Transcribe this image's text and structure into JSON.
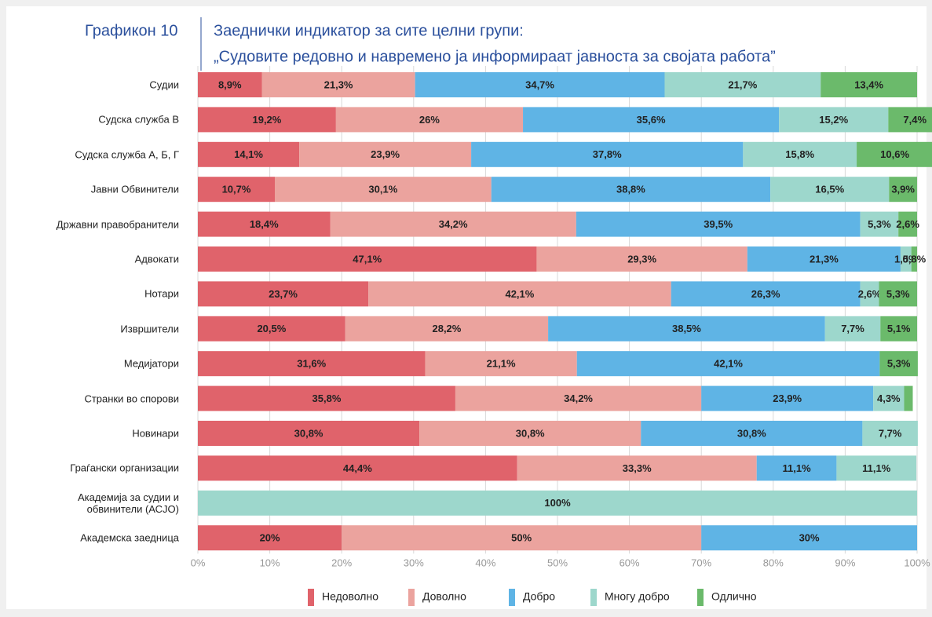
{
  "chart_data": {
    "type": "stacked_bar_horizontal",
    "figure_label": "Графикон 10",
    "title": "Заеднички индикатор за сите целни групи:",
    "subtitle": "„Судовите редовно и навремено ја информираат јавноста за својата работа”",
    "categories": [
      "Судии",
      "Судска служба В",
      "Судска служба А, Б, Г",
      "Јавни Обвинители",
      "Државни правобранители",
      "Адвокати",
      "Нотари",
      "Извршители",
      "Медијатори",
      "Странки во спорови",
      "Новинари",
      "Граѓански организации",
      "Академија за судии и обвинители (АСЈО)",
      "Академска заедница"
    ],
    "series": [
      {
        "name": "Недоволно",
        "color": "#e0636b",
        "values": [
          8.9,
          19.2,
          14.1,
          10.7,
          18.4,
          47.1,
          23.7,
          20.5,
          31.6,
          35.8,
          30.8,
          44.4,
          null,
          20
        ],
        "value_labels": [
          "8,9%",
          "19,2%",
          "14,1%",
          "10,7%",
          "18,4%",
          "47,1%",
          "23,7%",
          "20,5%",
          "31,6%",
          "35,8%",
          "30,8%",
          "44,4%",
          null,
          "20%"
        ]
      },
      {
        "name": "Доволно",
        "color": "#eba39e",
        "values": [
          21.3,
          26,
          23.9,
          30.1,
          34.2,
          29.3,
          42.1,
          28.2,
          21.1,
          34.2,
          30.8,
          33.3,
          null,
          50
        ],
        "value_labels": [
          "21,3%",
          "26%",
          "23,9%",
          "30,1%",
          "34,2%",
          "29,3%",
          "42,1%",
          "28,2%",
          "21,1%",
          "34,2%",
          "30,8%",
          "33,3%",
          null,
          "50%"
        ]
      },
      {
        "name": "Добро",
        "color": "#5fb4e5",
        "values": [
          34.7,
          35.6,
          37.8,
          38.8,
          39.5,
          21.3,
          26.3,
          38.5,
          42.1,
          23.9,
          30.8,
          11.1,
          null,
          30
        ],
        "value_labels": [
          "34,7%",
          "35,6%",
          "37,8%",
          "38,8%",
          "39,5%",
          "21,3%",
          "26,3%",
          "38,5%",
          "42,1%",
          "23,9%",
          "30,8%",
          "11,1%",
          null,
          "30%"
        ]
      },
      {
        "name": "Многу добро",
        "color": "#9dd7cc",
        "values": [
          21.7,
          15.2,
          15.8,
          16.5,
          5.3,
          1.5,
          2.6,
          7.7,
          null,
          4.3,
          7.7,
          11.1,
          100,
          null
        ],
        "value_labels": [
          "21,7%",
          "15,2%",
          "15,8%",
          "16,5%",
          "5,3%",
          "1,5%",
          "2,6%",
          "7,7%",
          null,
          "4,3%",
          "7,7%",
          "11,1%",
          "100%",
          null
        ]
      },
      {
        "name": "Одлично",
        "color": "#6bba6b",
        "values": [
          13.4,
          7.4,
          10.6,
          3.9,
          2.6,
          0.8,
          5.3,
          5.1,
          5.3,
          1.2,
          null,
          null,
          null,
          null
        ],
        "value_labels": [
          "13,4%",
          "7,4%",
          "10,6%",
          "3,9%",
          "2,6%",
          "0,8%",
          "5,3%",
          "5,1%",
          "5,3%",
          null,
          null,
          null,
          null,
          null
        ]
      }
    ],
    "xlim": [
      0,
      100
    ],
    "xticks": [
      {
        "value": 0,
        "label": "0%"
      },
      {
        "value": 10,
        "label": "10%"
      },
      {
        "value": 20,
        "label": "20%"
      },
      {
        "value": 30,
        "label": "30%"
      },
      {
        "value": 40,
        "label": "40%"
      },
      {
        "value": 50,
        "label": "50%"
      },
      {
        "value": 60,
        "label": "60%"
      },
      {
        "value": 70,
        "label": "70%"
      },
      {
        "value": 80,
        "label": "80%"
      },
      {
        "value": 90,
        "label": "90%"
      },
      {
        "value": 100,
        "label": "100%"
      }
    ],
    "grid": true,
    "legend": "bottom"
  }
}
